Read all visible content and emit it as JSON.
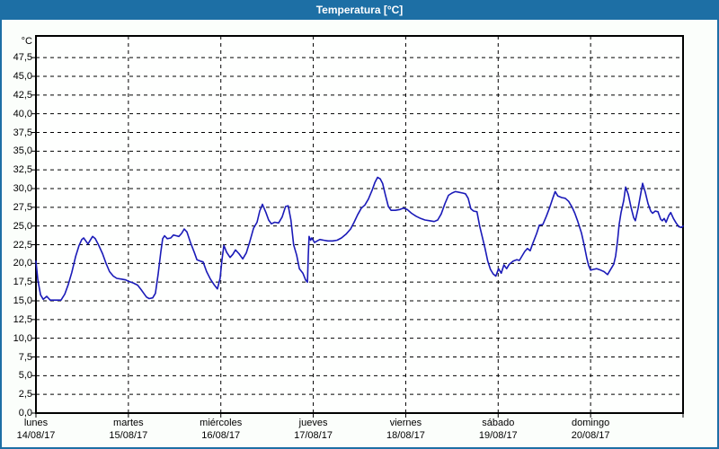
{
  "window": {
    "title": "Temperatura [°C]",
    "colors": {
      "title_bar_bg": "#1d6fa5",
      "title_text": "#ffffff",
      "frame_border": "#1d6fa5",
      "page_bg": "#fbfefb",
      "plot_bg": "#fefffe",
      "grid": "#000000",
      "axis_text": "#000000",
      "line": "#1a1ab8"
    }
  },
  "chart_data": {
    "type": "line",
    "title": "Temperatura [°C]",
    "ylabel": "°C",
    "xlabel": "",
    "legend": "none",
    "grid": "dashed",
    "ylim": [
      0,
      50.4
    ],
    "y_tick_values": [
      0,
      2.5,
      5,
      7.5,
      10,
      12.5,
      15,
      17.5,
      20,
      22.5,
      25,
      27.5,
      30,
      32.5,
      35,
      37.5,
      40,
      42.5,
      45,
      47.5
    ],
    "y_tick_labels": [
      "0,0",
      "2,5",
      "5,0",
      "7,5",
      "10,0",
      "12,5",
      "15,0",
      "17,5",
      "20,0",
      "22,5",
      "25,0",
      "27,5",
      "30,0",
      "32,5",
      "35,0",
      "37,5",
      "40,0",
      "42,5",
      "45,0",
      "47,5"
    ],
    "x_axis": {
      "unit": "hours",
      "range": [
        0,
        168
      ],
      "day_labels": [
        {
          "name": "lunes",
          "date": "14/08/17"
        },
        {
          "name": "martes",
          "date": "15/08/17"
        },
        {
          "name": "miércoles",
          "date": "16/08/17"
        },
        {
          "name": "jueves",
          "date": "17/08/17"
        },
        {
          "name": "viernes",
          "date": "18/08/17"
        },
        {
          "name": "sábado",
          "date": "19/08/17"
        },
        {
          "name": "domingo",
          "date": "20/08/17"
        }
      ]
    },
    "series": [
      {
        "name": "Temperatura",
        "color": "#1a1ab8",
        "points": [
          [
            0,
            20.3
          ],
          [
            0.5,
            17.8
          ],
          [
            1.2,
            15.8
          ],
          [
            1.9,
            15.2
          ],
          [
            2.8,
            15.6
          ],
          [
            3.7,
            15.1
          ],
          [
            5.1,
            15.1
          ],
          [
            6.5,
            15.1
          ],
          [
            7.5,
            15.9
          ],
          [
            8.4,
            17.2
          ],
          [
            9.3,
            18.8
          ],
          [
            10.3,
            20.9
          ],
          [
            11.2,
            22.4
          ],
          [
            11.9,
            23.2
          ],
          [
            12.4,
            23.4
          ],
          [
            13.1,
            22.9
          ],
          [
            13.5,
            22.6
          ],
          [
            14.2,
            23.2
          ],
          [
            14.7,
            23.6
          ],
          [
            15.4,
            23.3
          ],
          [
            16.3,
            22.4
          ],
          [
            17.3,
            21.3
          ],
          [
            18.2,
            20.0
          ],
          [
            19.1,
            18.9
          ],
          [
            20.1,
            18.3
          ],
          [
            21.0,
            18.0
          ],
          [
            22.2,
            17.9
          ],
          [
            23.3,
            17.8
          ],
          [
            24.0,
            17.6
          ],
          [
            25.2,
            17.4
          ],
          [
            26.4,
            17.1
          ],
          [
            27.3,
            16.5
          ],
          [
            28.0,
            16.0
          ],
          [
            28.7,
            15.5
          ],
          [
            29.4,
            15.3
          ],
          [
            30.3,
            15.4
          ],
          [
            31.0,
            16.0
          ],
          [
            31.7,
            18.5
          ],
          [
            32.4,
            21.5
          ],
          [
            32.9,
            23.3
          ],
          [
            33.4,
            23.7
          ],
          [
            34.1,
            23.3
          ],
          [
            35.0,
            23.4
          ],
          [
            35.7,
            23.8
          ],
          [
            36.4,
            23.7
          ],
          [
            37.1,
            23.6
          ],
          [
            37.8,
            24.0
          ],
          [
            38.5,
            24.6
          ],
          [
            39.2,
            24.2
          ],
          [
            40.1,
            22.8
          ],
          [
            41.1,
            21.5
          ],
          [
            41.8,
            20.5
          ],
          [
            42.7,
            20.3
          ],
          [
            43.4,
            20.2
          ],
          [
            44.3,
            18.9
          ],
          [
            45.3,
            17.9
          ],
          [
            46.2,
            17.2
          ],
          [
            47.1,
            16.6
          ],
          [
            47.8,
            18.0
          ],
          [
            48.3,
            20.5
          ],
          [
            48.8,
            22.4
          ],
          [
            49.5,
            21.5
          ],
          [
            50.4,
            20.8
          ],
          [
            51.1,
            21.2
          ],
          [
            51.8,
            21.8
          ],
          [
            52.7,
            21.3
          ],
          [
            53.7,
            20.6
          ],
          [
            54.6,
            21.4
          ],
          [
            55.5,
            22.9
          ],
          [
            56.5,
            24.7
          ],
          [
            57.4,
            25.5
          ],
          [
            58.1,
            27.0
          ],
          [
            58.8,
            27.9
          ],
          [
            59.7,
            26.8
          ],
          [
            60.4,
            25.8
          ],
          [
            61.1,
            25.3
          ],
          [
            62.0,
            25.5
          ],
          [
            63.0,
            25.4
          ],
          [
            63.9,
            26.2
          ],
          [
            64.8,
            27.6
          ],
          [
            65.5,
            27.7
          ],
          [
            66.2,
            25.8
          ],
          [
            66.9,
            22.5
          ],
          [
            67.7,
            21.1
          ],
          [
            68.4,
            19.3
          ],
          [
            69.3,
            18.7
          ],
          [
            70.0,
            17.8
          ],
          [
            70.5,
            17.5
          ],
          [
            70.7,
            21.0
          ],
          [
            70.9,
            23.6
          ],
          [
            71.3,
            23.1
          ],
          [
            71.6,
            23.4
          ],
          [
            72.3,
            22.8
          ],
          [
            73.0,
            23.0
          ],
          [
            73.7,
            23.2
          ],
          [
            74.7,
            23.1
          ],
          [
            75.8,
            23.0
          ],
          [
            77.0,
            23.0
          ],
          [
            78.2,
            23.1
          ],
          [
            79.3,
            23.4
          ],
          [
            80.5,
            23.9
          ],
          [
            81.7,
            24.6
          ],
          [
            82.6,
            25.5
          ],
          [
            83.5,
            26.5
          ],
          [
            84.5,
            27.4
          ],
          [
            85.4,
            27.8
          ],
          [
            86.3,
            28.6
          ],
          [
            87.3,
            29.8
          ],
          [
            88.0,
            30.8
          ],
          [
            88.7,
            31.5
          ],
          [
            89.4,
            31.3
          ],
          [
            90.0,
            30.7
          ],
          [
            90.7,
            29.2
          ],
          [
            91.5,
            27.6
          ],
          [
            92.2,
            27.1
          ],
          [
            93.3,
            27.1
          ],
          [
            94.5,
            27.2
          ],
          [
            95.4,
            27.4
          ],
          [
            96.4,
            27.2
          ],
          [
            97.5,
            26.7
          ],
          [
            98.7,
            26.3
          ],
          [
            99.9,
            26.0
          ],
          [
            101.0,
            25.8
          ],
          [
            102.2,
            25.7
          ],
          [
            103.4,
            25.6
          ],
          [
            104.3,
            25.8
          ],
          [
            105.2,
            26.6
          ],
          [
            106.2,
            28.0
          ],
          [
            107.1,
            29.1
          ],
          [
            108.0,
            29.4
          ],
          [
            108.9,
            29.6
          ],
          [
            109.9,
            29.5
          ],
          [
            110.8,
            29.4
          ],
          [
            111.5,
            29.3
          ],
          [
            112.2,
            28.7
          ],
          [
            112.9,
            27.3
          ],
          [
            113.6,
            27.0
          ],
          [
            114.5,
            26.9
          ],
          [
            115.2,
            25.0
          ],
          [
            115.9,
            23.5
          ],
          [
            116.6,
            22.0
          ],
          [
            117.3,
            20.3
          ],
          [
            118.0,
            19.2
          ],
          [
            118.7,
            18.6
          ],
          [
            119.4,
            18.3
          ],
          [
            120.1,
            19.3
          ],
          [
            120.8,
            18.7
          ],
          [
            121.5,
            19.8
          ],
          [
            122.2,
            19.3
          ],
          [
            122.9,
            19.9
          ],
          [
            123.9,
            20.3
          ],
          [
            124.8,
            20.5
          ],
          [
            125.5,
            20.4
          ],
          [
            126.2,
            21.0
          ],
          [
            126.9,
            21.6
          ],
          [
            127.6,
            22.0
          ],
          [
            128.3,
            21.7
          ],
          [
            129.0,
            22.7
          ],
          [
            130.0,
            24.0
          ],
          [
            130.7,
            25.1
          ],
          [
            131.6,
            25.2
          ],
          [
            132.5,
            26.3
          ],
          [
            133.4,
            27.5
          ],
          [
            134.1,
            28.6
          ],
          [
            134.8,
            29.6
          ],
          [
            135.5,
            29.0
          ],
          [
            136.5,
            28.8
          ],
          [
            137.4,
            28.7
          ],
          [
            138.3,
            28.3
          ],
          [
            139.2,
            27.5
          ],
          [
            139.9,
            26.7
          ],
          [
            140.6,
            25.7
          ],
          [
            141.6,
            24.1
          ],
          [
            142.3,
            22.5
          ],
          [
            143.0,
            20.7
          ],
          [
            143.5,
            19.7
          ],
          [
            144.0,
            19.1
          ],
          [
            144.7,
            19.2
          ],
          [
            145.6,
            19.3
          ],
          [
            146.6,
            19.1
          ],
          [
            147.5,
            18.9
          ],
          [
            148.4,
            18.5
          ],
          [
            149.3,
            19.3
          ],
          [
            150.0,
            19.9
          ],
          [
            150.5,
            21.0
          ],
          [
            151.0,
            23.0
          ],
          [
            151.4,
            25.2
          ],
          [
            151.9,
            26.8
          ],
          [
            152.6,
            28.4
          ],
          [
            153.1,
            30.2
          ],
          [
            153.8,
            29.2
          ],
          [
            154.5,
            27.5
          ],
          [
            155.2,
            26.1
          ],
          [
            155.6,
            25.7
          ],
          [
            156.3,
            27.3
          ],
          [
            157.0,
            29.3
          ],
          [
            157.5,
            30.7
          ],
          [
            158.2,
            29.5
          ],
          [
            158.9,
            28.0
          ],
          [
            159.6,
            27.0
          ],
          [
            160.1,
            26.7
          ],
          [
            160.8,
            27.0
          ],
          [
            161.5,
            26.9
          ],
          [
            162.2,
            25.9
          ],
          [
            162.6,
            25.7
          ],
          [
            163.1,
            26.0
          ],
          [
            163.6,
            25.5
          ],
          [
            164.3,
            26.4
          ],
          [
            164.8,
            26.8
          ],
          [
            165.5,
            26.0
          ],
          [
            166.2,
            25.4
          ],
          [
            166.9,
            24.9
          ],
          [
            167.6,
            24.8
          ],
          [
            168.0,
            25.0
          ]
        ]
      }
    ]
  }
}
